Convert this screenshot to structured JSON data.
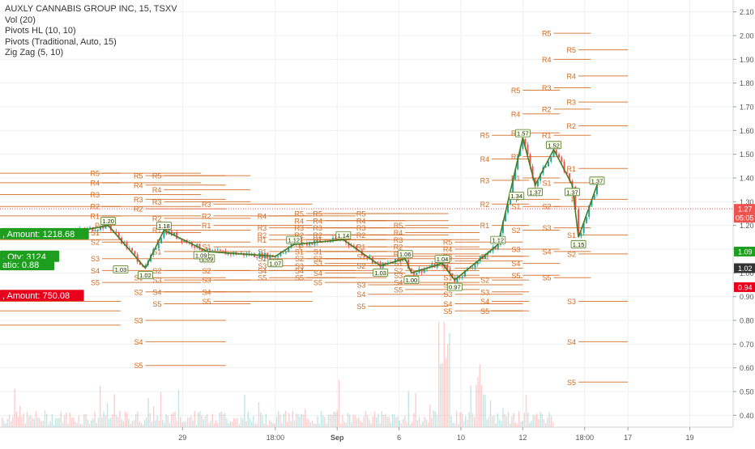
{
  "legend": {
    "title": "AUXLY CANNABIS GROUP INC, 15, TSXV",
    "indicators": [
      "Vol (20)",
      "Pivots HL (10, 10)",
      "Pivots (Traditional, Auto, 15)",
      "Zig Zag (5, 10)"
    ]
  },
  "colors": {
    "zigzag": "#4a7a1f",
    "pivot": "#d2691e",
    "up": "#26a69a",
    "down": "#ef5350",
    "green_label": "#1e9e1e",
    "red_label": "#e8001c",
    "axis_text": "#555555"
  },
  "chart_data": {
    "type": "candlestick",
    "y_axis": {
      "min": 0.35,
      "max": 2.15,
      "ticks": [
        "2.10",
        "2.00",
        "1.90",
        "1.80",
        "1.70",
        "1.60",
        "1.50",
        "1.40",
        "1.30",
        "1.20",
        "1.10",
        "1.00",
        "0.90",
        "0.80",
        "0.70",
        "0.60",
        "0.50",
        "0.40"
      ]
    },
    "x_axis": {
      "ticks": [
        {
          "label": "29",
          "x": 29.0
        },
        {
          "label": "18:00",
          "x": 30.5
        },
        {
          "label": "Sep",
          "x": 31.5
        },
        {
          "label": "6",
          "x": 32.5
        },
        {
          "label": "10",
          "x": 33.5
        },
        {
          "label": "12",
          "x": 34.5
        },
        {
          "label": "18:00",
          "x": 35.5
        },
        {
          "label": "17",
          "x": 36.2
        },
        {
          "label": "19",
          "x": 37.2
        }
      ]
    },
    "zigzag": [
      {
        "x": 27.0,
        "y": 1.16,
        "label": ""
      },
      {
        "x": 27.8,
        "y": 1.2,
        "label": "1.20"
      },
      {
        "x": 28.4,
        "y": 1.02,
        "label": "1.02"
      },
      {
        "x": 28.7,
        "y": 1.18,
        "label": "1.18"
      },
      {
        "x": 29.4,
        "y": 1.09,
        "label": "1.09"
      },
      {
        "x": 30.5,
        "y": 1.07,
        "label": "1.07"
      },
      {
        "x": 30.8,
        "y": 1.12,
        "label": "1.12"
      },
      {
        "x": 31.6,
        "y": 1.14,
        "label": "1.14"
      },
      {
        "x": 32.2,
        "y": 1.03,
        "label": "1.03"
      },
      {
        "x": 32.6,
        "y": 1.06,
        "label": "1.06"
      },
      {
        "x": 32.7,
        "y": 1.0,
        "label": "1.00"
      },
      {
        "x": 33.2,
        "y": 1.04,
        "label": "1.04"
      },
      {
        "x": 33.4,
        "y": 0.97,
        "label": "0.97"
      },
      {
        "x": 34.1,
        "y": 1.12,
        "label": "1.12"
      },
      {
        "x": 34.5,
        "y": 1.57,
        "label": "1.57"
      },
      {
        "x": 34.7,
        "y": 1.37,
        "label": "1.37"
      },
      {
        "x": 35.0,
        "y": 1.52,
        "label": "1.52"
      },
      {
        "x": 35.3,
        "y": 1.37,
        "label": "1.37"
      },
      {
        "x": 35.4,
        "y": 1.15,
        "label": "1.15"
      },
      {
        "x": 35.7,
        "y": 1.37,
        "label": "1.37"
      }
    ],
    "extra_swing_labels": [
      {
        "x": 28.0,
        "y": 1.03,
        "label": "1.03"
      },
      {
        "x": 29.3,
        "y": 1.09,
        "label": "1.09"
      },
      {
        "x": 34.4,
        "y": 1.34,
        "label": "1.34"
      }
    ],
    "pivot_sessions": [
      {
        "x0": 26.0,
        "x1": 28.0,
        "levels": [
          {
            "name": "R5",
            "v": 1.42
          },
          {
            "name": "R4",
            "v": 1.38
          },
          {
            "name": "R3",
            "v": 1.33
          },
          {
            "name": "R2",
            "v": 1.28
          },
          {
            "name": "R1",
            "v": 1.24
          },
          {
            "name": "S1",
            "v": 1.17
          },
          {
            "name": "S2",
            "v": 1.14
          },
          {
            "name": "S3",
            "v": 0.88
          },
          {
            "name": "S4",
            "v": 0.84
          },
          {
            "name": "S5",
            "v": 0.78
          }
        ]
      },
      {
        "x0": 27.7,
        "x1": 29.3,
        "levels": [
          {
            "name": "R5",
            "v": 1.42
          },
          {
            "name": "R4",
            "v": 1.38
          },
          {
            "name": "R3",
            "v": 1.33
          },
          {
            "name": "R2",
            "v": 1.28
          },
          {
            "name": "R1",
            "v": 1.24
          },
          {
            "name": "P",
            "v": 1.2
          },
          {
            "name": "S1",
            "v": 1.17
          },
          {
            "name": "S2",
            "v": 1.13
          },
          {
            "name": "S3",
            "v": 1.06
          },
          {
            "name": "S4",
            "v": 1.01
          },
          {
            "name": "S5",
            "v": 0.96
          }
        ]
      },
      {
        "x0": 28.4,
        "x1": 29.7,
        "levels": [
          {
            "name": "R5",
            "v": 1.41
          },
          {
            "name": "R4",
            "v": 1.37
          },
          {
            "name": "R3",
            "v": 1.31
          },
          {
            "name": "R2",
            "v": 1.27
          },
          {
            "name": "S1",
            "v": 0.98
          },
          {
            "name": "S2",
            "v": 0.92
          },
          {
            "name": "S3",
            "v": 0.8
          },
          {
            "name": "S4",
            "v": 0.71
          },
          {
            "name": "S5",
            "v": 0.61
          }
        ]
      },
      {
        "x0": 28.7,
        "x1": 30.1,
        "levels": [
          {
            "name": "R5",
            "v": 1.41
          },
          {
            "name": "R4",
            "v": 1.35
          },
          {
            "name": "R3",
            "v": 1.3
          },
          {
            "name": "R2",
            "v": 1.23
          },
          {
            "name": "R1",
            "v": 1.18
          },
          {
            "name": "P",
            "v": 1.13
          },
          {
            "name": "S1",
            "v": 1.09
          },
          {
            "name": "S2",
            "v": 1.01
          },
          {
            "name": "S3",
            "v": 0.97
          },
          {
            "name": "S4",
            "v": 0.92
          },
          {
            "name": "S5",
            "v": 0.87
          }
        ]
      },
      {
        "x0": 29.5,
        "x1": 31.1,
        "levels": [
          {
            "name": "R3",
            "v": 1.29
          },
          {
            "name": "R2",
            "v": 1.24
          },
          {
            "name": "R1",
            "v": 1.2
          },
          {
            "name": "S1",
            "v": 1.11
          },
          {
            "name": "S2",
            "v": 1.01
          },
          {
            "name": "S3",
            "v": 0.97
          },
          {
            "name": "S4",
            "v": 0.92
          },
          {
            "name": "S5",
            "v": 0.88
          }
        ]
      },
      {
        "x0": 30.4,
        "x1": 31.8,
        "levels": [
          {
            "name": "R4",
            "v": 1.24
          },
          {
            "name": "R3",
            "v": 1.19
          },
          {
            "name": "R2",
            "v": 1.16
          },
          {
            "name": "R1",
            "v": 1.14
          },
          {
            "name": "S1",
            "v": 1.09
          },
          {
            "name": "S2",
            "v": 1.06
          },
          {
            "name": "S3",
            "v": 1.03
          },
          {
            "name": "S4",
            "v": 1.01
          },
          {
            "name": "S5",
            "v": 0.98
          }
        ]
      },
      {
        "x0": 31.0,
        "x1": 32.3,
        "levels": [
          {
            "name": "R5",
            "v": 1.25
          },
          {
            "name": "R4",
            "v": 1.22
          },
          {
            "name": "R3",
            "v": 1.19
          },
          {
            "name": "R2",
            "v": 1.16
          },
          {
            "name": "R1",
            "v": 1.14
          },
          {
            "name": "P",
            "v": 1.11
          },
          {
            "name": "S1",
            "v": 1.09
          },
          {
            "name": "S2",
            "v": 1.06
          },
          {
            "name": "S3",
            "v": 1.03
          },
          {
            "name": "S4",
            "v": 1.01
          },
          {
            "name": "S5",
            "v": 0.98
          }
        ]
      },
      {
        "x0": 31.3,
        "x1": 32.6,
        "levels": [
          {
            "name": "R5",
            "v": 1.25
          },
          {
            "name": "R4",
            "v": 1.22
          },
          {
            "name": "R3",
            "v": 1.19
          },
          {
            "name": "R2",
            "v": 1.16
          },
          {
            "name": "R1",
            "v": 1.14
          },
          {
            "name": "S1",
            "v": 1.09
          },
          {
            "name": "S2",
            "v": 1.06
          },
          {
            "name": "S3",
            "v": 1.04
          },
          {
            "name": "S4",
            "v": 1.0
          },
          {
            "name": "S5",
            "v": 0.96
          }
        ]
      },
      {
        "x0": 32.0,
        "x1": 33.3,
        "levels": [
          {
            "name": "R5",
            "v": 1.25
          },
          {
            "name": "R4",
            "v": 1.22
          },
          {
            "name": "R3",
            "v": 1.19
          },
          {
            "name": "R2",
            "v": 1.16
          },
          {
            "name": "R1",
            "v": 1.11
          },
          {
            "name": "S1",
            "v": 1.07
          },
          {
            "name": "S2",
            "v": 1.03
          },
          {
            "name": "S3",
            "v": 0.95
          },
          {
            "name": "S4",
            "v": 0.91
          },
          {
            "name": "S5",
            "v": 0.86
          }
        ]
      },
      {
        "x0": 32.6,
        "x1": 33.8,
        "levels": [
          {
            "name": "R5",
            "v": 1.2
          },
          {
            "name": "R4",
            "v": 1.17
          },
          {
            "name": "R3",
            "v": 1.14
          },
          {
            "name": "R2",
            "v": 1.11
          },
          {
            "name": "R1",
            "v": 1.08
          },
          {
            "name": "P",
            "v": 1.06
          },
          {
            "name": "S1",
            "v": 1.04
          },
          {
            "name": "S2",
            "v": 1.01
          },
          {
            "name": "S3",
            "v": 0.99
          },
          {
            "name": "S4",
            "v": 0.96
          },
          {
            "name": "S5",
            "v": 0.93
          }
        ]
      },
      {
        "x0": 33.4,
        "x1": 34.5,
        "levels": [
          {
            "name": "R5",
            "v": 1.13
          },
          {
            "name": "R4",
            "v": 1.1
          },
          {
            "name": "R3",
            "v": 1.07
          },
          {
            "name": "R2",
            "v": 1.05
          },
          {
            "name": "R1",
            "v": 1.02
          },
          {
            "name": "S1",
            "v": 0.98
          },
          {
            "name": "S2",
            "v": 0.95
          },
          {
            "name": "S3",
            "v": 0.91
          },
          {
            "name": "S4",
            "v": 0.87
          },
          {
            "name": "S5",
            "v": 0.84
          }
        ]
      },
      {
        "x0": 34.0,
        "x1": 34.6,
        "levels": [
          {
            "name": "R5",
            "v": 1.58
          },
          {
            "name": "R4",
            "v": 1.48
          },
          {
            "name": "R3",
            "v": 1.39
          },
          {
            "name": "R2",
            "v": 1.29
          },
          {
            "name": "R1",
            "v": 1.2
          },
          {
            "name": "S1",
            "v": 1.07
          },
          {
            "name": "S2",
            "v": 0.97
          },
          {
            "name": "S3",
            "v": 0.92
          },
          {
            "name": "S4",
            "v": 0.88
          },
          {
            "name": "S5",
            "v": 0.84
          }
        ]
      },
      {
        "x0": 34.5,
        "x1": 35.1,
        "levels": [
          {
            "name": "R5",
            "v": 1.77
          },
          {
            "name": "R4",
            "v": 1.67
          },
          {
            "name": "R3",
            "v": 1.59
          },
          {
            "name": "R2",
            "v": 1.49
          },
          {
            "name": "R1",
            "v": 1.4
          },
          {
            "name": "P",
            "v": 1.31
          },
          {
            "name": "S1",
            "v": 1.28
          },
          {
            "name": "S2",
            "v": 1.18
          },
          {
            "name": "S3",
            "v": 1.1
          },
          {
            "name": "S4",
            "v": 1.04
          },
          {
            "name": "S5",
            "v": 0.99
          }
        ]
      },
      {
        "x0": 35.0,
        "x1": 35.6,
        "levels": [
          {
            "name": "R5",
            "v": 2.01
          },
          {
            "name": "R4",
            "v": 1.9
          },
          {
            "name": "R3",
            "v": 1.78
          },
          {
            "name": "R2",
            "v": 1.69
          },
          {
            "name": "R1",
            "v": 1.58
          },
          {
            "name": "S1",
            "v": 1.38
          },
          {
            "name": "S2",
            "v": 1.28
          },
          {
            "name": "S3",
            "v": 1.19
          },
          {
            "name": "S4",
            "v": 1.09
          },
          {
            "name": "S5",
            "v": 0.98
          }
        ]
      },
      {
        "x0": 35.4,
        "x1": 36.2,
        "levels": [
          {
            "name": "R5",
            "v": 1.94
          },
          {
            "name": "R4",
            "v": 1.83
          },
          {
            "name": "R3",
            "v": 1.72
          },
          {
            "name": "R2",
            "v": 1.62
          },
          {
            "name": "R1",
            "v": 1.44
          },
          {
            "name": "P",
            "v": 1.31
          },
          {
            "name": "S1",
            "v": 1.16
          },
          {
            "name": "S2",
            "v": 1.08
          },
          {
            "name": "S3",
            "v": 0.88
          },
          {
            "name": "S4",
            "v": 0.71
          },
          {
            "name": "S5",
            "v": 0.54
          }
        ]
      }
    ],
    "current_price": {
      "value": 1.27,
      "label": "1.27",
      "countdown": "05:05"
    },
    "price_badges": [
      {
        "value": 1.09,
        "label": "1.09",
        "color": "#1e9e1e"
      },
      {
        "value": 1.02,
        "label": "1.02",
        "color": "#333333"
      },
      {
        "value": 0.94,
        "label": "0.94",
        "color": "#e8001c"
      }
    ],
    "trade_labels": [
      {
        "text": ", Amount: 1218.68",
        "value": 1.165,
        "color": "#1e9e1e"
      },
      {
        "text": ", Qty: 3124",
        "value": 1.07,
        "color": "#1e9e1e"
      },
      {
        "text": "atio: 0.88",
        "value": 1.035,
        "color": "#1e9e1e"
      },
      {
        "text": ", Amount: 750.08",
        "value": 0.905,
        "color": "#e8001c"
      }
    ]
  }
}
